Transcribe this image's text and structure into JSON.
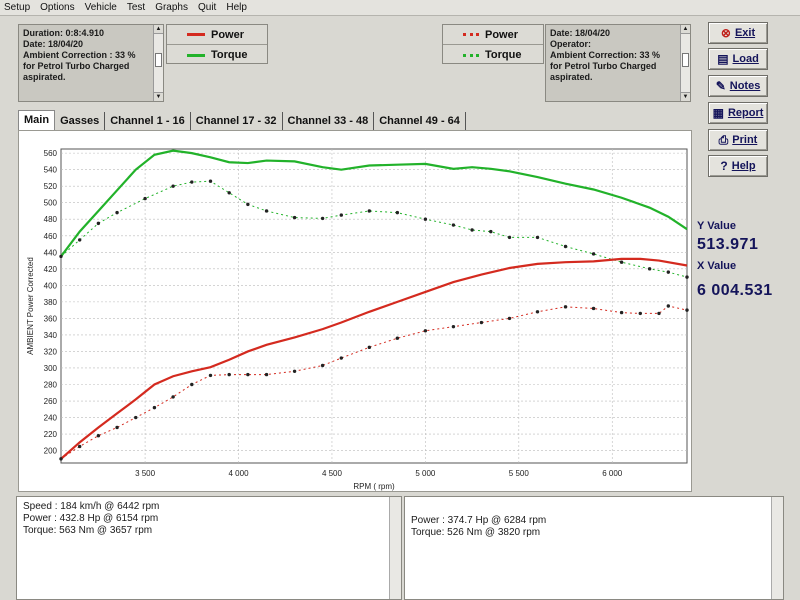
{
  "menu": [
    "Setup",
    "Options",
    "Vehicle",
    "Test",
    "Graphs",
    "Quit",
    "Help"
  ],
  "left_info": [
    "Duration: 0:8:4.910",
    "Date: 18/04/20",
    "Ambient Correction : 33 %",
    " for Petrol Turbo Charged",
    "aspirated."
  ],
  "right_info": [
    "Date: 18/04/20",
    "Operator:",
    "Ambient Correction: 33 %",
    " for Petrol Turbo Charged",
    "aspirated."
  ],
  "legend_left": [
    {
      "label": "Power",
      "color": "#d42a1f"
    },
    {
      "label": "Torque",
      "color": "#22b22a"
    }
  ],
  "legend_right": [
    {
      "label": "Power",
      "color": "#d42a1f"
    },
    {
      "label": "Torque",
      "color": "#22b22a"
    }
  ],
  "buttons": [
    {
      "label": "Exit",
      "icon": "exit-icon",
      "glyph": "⊗"
    },
    {
      "label": "Load",
      "icon": "load-icon",
      "glyph": "▤"
    },
    {
      "label": "Notes",
      "icon": "notes-icon",
      "glyph": "✎"
    },
    {
      "label": "Report",
      "icon": "report-icon",
      "glyph": "▦"
    },
    {
      "label": "Print",
      "icon": "print-icon",
      "glyph": "⎙"
    },
    {
      "label": "Help",
      "icon": "help-icon",
      "glyph": "?"
    }
  ],
  "tabs": [
    "Main",
    "Gasses",
    "Channel 1 - 16",
    "Channel 17 - 32",
    "Channel 33 - 48",
    "Channel 49 - 64"
  ],
  "readout": {
    "y_label": "Y Value",
    "y_value": "513.971",
    "x_label": "X Value",
    "x_value": "6 004.531"
  },
  "bottom_left": [
    "Speed : 184 km/h @ 6442 rpm",
    "Power : 432.8 Hp @ 6154 rpm",
    "Torque: 563 Nm @ 3657 rpm"
  ],
  "bottom_right": [
    "Power : 374.7 Hp @ 6284 rpm",
    "Torque: 526 Nm @ 3820 rpm"
  ],
  "chart_data": {
    "type": "line",
    "xlabel": "RPM ( rpm)",
    "ylabel": "AMBIENT Power Corrected",
    "xlim": [
      3050,
      6400
    ],
    "ylim": [
      185,
      565
    ],
    "x_ticks": [
      3500,
      4000,
      4500,
      5000,
      5500,
      6000
    ],
    "x_tick_labels": [
      "3 500",
      "4 000",
      "4 500",
      "5 000",
      "5 500",
      "6 000"
    ],
    "y_ticks": [
      200,
      220,
      240,
      260,
      280,
      300,
      320,
      340,
      360,
      380,
      400,
      420,
      440,
      460,
      480,
      500,
      520,
      540,
      560
    ],
    "grid": true,
    "series": [
      {
        "color": "#22b22a",
        "style": "solid",
        "x": [
          3050,
          3150,
          3250,
          3350,
          3450,
          3550,
          3650,
          3750,
          3850,
          3950,
          4050,
          4150,
          4300,
          4450,
          4550,
          4700,
          4850,
          5000,
          5150,
          5250,
          5350,
          5450,
          5600,
          5750,
          5900,
          6050,
          6200,
          6300,
          6400
        ],
        "values": [
          435,
          465,
          490,
          515,
          540,
          558,
          563,
          560,
          555,
          549,
          548,
          551,
          550,
          543,
          540,
          545,
          546,
          547,
          541,
          543,
          541,
          538,
          531,
          523,
          516,
          506,
          494,
          483,
          468
        ]
      },
      {
        "color": "#22b22a",
        "style": "dotted",
        "x": [
          3050,
          3150,
          3250,
          3350,
          3500,
          3650,
          3750,
          3850,
          3950,
          4050,
          4150,
          4300,
          4450,
          4550,
          4700,
          4850,
          5000,
          5150,
          5250,
          5350,
          5450,
          5600,
          5750,
          5900,
          6050,
          6200,
          6300,
          6400
        ],
        "values": [
          435,
          455,
          475,
          488,
          505,
          520,
          525,
          526,
          512,
          498,
          490,
          482,
          481,
          485,
          490,
          488,
          480,
          473,
          467,
          465,
          458,
          458,
          447,
          438,
          428,
          420,
          416,
          410
        ]
      },
      {
        "color": "#d42a1f",
        "style": "solid",
        "x": [
          3050,
          3150,
          3250,
          3350,
          3450,
          3550,
          3650,
          3750,
          3850,
          3950,
          4050,
          4150,
          4300,
          4450,
          4550,
          4700,
          4850,
          5000,
          5150,
          5300,
          5450,
          5600,
          5750,
          5900,
          6050,
          6150,
          6250,
          6400
        ],
        "values": [
          190,
          210,
          228,
          245,
          262,
          280,
          290,
          296,
          301,
          310,
          320,
          328,
          337,
          347,
          355,
          368,
          380,
          392,
          404,
          413,
          421,
          426,
          428,
          429,
          432,
          432,
          430,
          424
        ]
      },
      {
        "color": "#d42a1f",
        "style": "dotted",
        "x": [
          3050,
          3150,
          3250,
          3350,
          3450,
          3550,
          3650,
          3750,
          3850,
          3950,
          4050,
          4150,
          4300,
          4450,
          4550,
          4700,
          4850,
          5000,
          5150,
          5300,
          5450,
          5600,
          5750,
          5900,
          6050,
          6150,
          6250,
          6300,
          6400
        ],
        "values": [
          190,
          205,
          218,
          228,
          240,
          252,
          265,
          280,
          291,
          292,
          292,
          292,
          296,
          303,
          312,
          325,
          336,
          345,
          350,
          355,
          360,
          368,
          374,
          372,
          367,
          366,
          366,
          375,
          370
        ]
      }
    ]
  }
}
